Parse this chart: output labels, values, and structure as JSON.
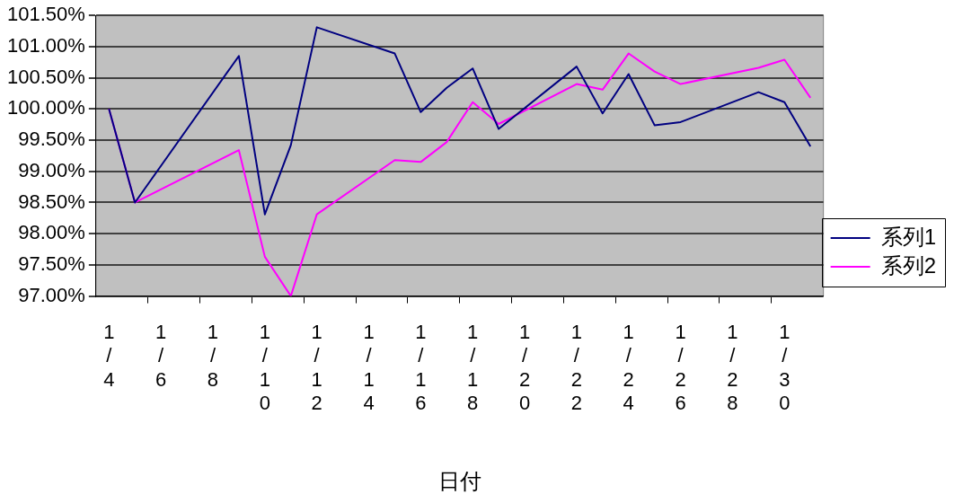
{
  "chart_data": {
    "type": "line",
    "xlabel": "日付",
    "categories": [
      "1/4",
      null,
      "1/6",
      null,
      "1/8",
      null,
      "1/10",
      null,
      "1/12",
      null,
      "1/14",
      null,
      "1/16",
      null,
      "1/18",
      null,
      "1/20",
      null,
      "1/22",
      null,
      "1/24",
      null,
      "1/26",
      null,
      "1/28",
      null,
      "1/30",
      null
    ],
    "series": [
      {
        "name": "系列1",
        "color": "#000080",
        "values": [
          100.0,
          98.5,
          null,
          null,
          null,
          100.85,
          98.31,
          99.42,
          101.31,
          null,
          null,
          100.89,
          99.95,
          100.34,
          100.65,
          99.68,
          null,
          null,
          100.68,
          99.93,
          100.56,
          99.74,
          99.79,
          null,
          null,
          100.27,
          100.11,
          99.4
        ]
      },
      {
        "name": "系列2",
        "color": "#ff00ff",
        "values": [
          100.0,
          98.5,
          null,
          null,
          null,
          99.34,
          97.63,
          97.0,
          98.31,
          null,
          null,
          99.18,
          99.15,
          99.47,
          100.11,
          99.76,
          null,
          null,
          100.4,
          100.31,
          100.89,
          100.6,
          100.4,
          null,
          null,
          100.66,
          100.79,
          100.18
        ]
      }
    ],
    "ylim": [
      97,
      101.5
    ],
    "yticks": [
      {
        "value": 97,
        "label": "97.00%"
      },
      {
        "value": 97.5,
        "label": "97.50%"
      },
      {
        "value": 98,
        "label": "98.00%"
      },
      {
        "value": 98.5,
        "label": "98.50%"
      },
      {
        "value": 99,
        "label": "99.00%"
      },
      {
        "value": 99.5,
        "label": "99.50%"
      },
      {
        "value": 100,
        "label": "100.00%"
      },
      {
        "value": 100.5,
        "label": "100.50%"
      },
      {
        "value": 101,
        "label": "101.00%"
      },
      {
        "value": 101.5,
        "label": "101.50%"
      }
    ],
    "grid": "y",
    "legend": "right",
    "marker": "none",
    "line_style": "solid"
  }
}
